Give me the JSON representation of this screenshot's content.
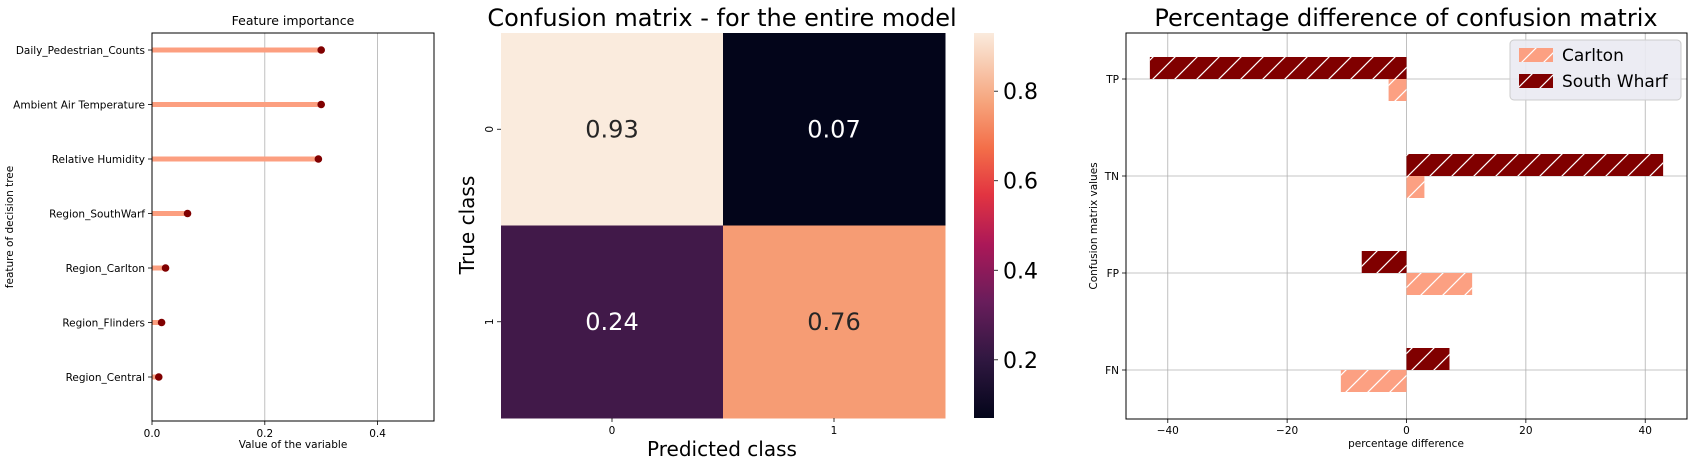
{
  "colors": {
    "salmon": "#fca082",
    "darkred": "#800000",
    "lollipop_line": "#fc9f80",
    "grid": "#b0b0b0"
  },
  "chart_data": [
    {
      "type": "bar",
      "orientation": "horizontal",
      "style": "lollipop",
      "title": "Feature importance",
      "xlabel": "Value of the variable",
      "ylabel": "feature of decision tree",
      "categories": [
        "Daily_Pedestrian_Counts",
        "Ambient Air Temperature",
        "Relative Humidity",
        "Region_SouthWarf",
        "Region_Carlton",
        "Region_Flinders",
        "Region_Central"
      ],
      "values": [
        0.3,
        0.3,
        0.295,
        0.063,
        0.024,
        0.017,
        0.012
      ],
      "xlim": [
        0,
        0.5
      ],
      "xticks": [
        0.0,
        0.2,
        0.4
      ],
      "xtick_labels": [
        "0.0",
        "0.2",
        "0.4"
      ],
      "grid": "vertical"
    },
    {
      "type": "heatmap",
      "title": "Confusion matrix - for the entire model",
      "xlabel": "Predicted class",
      "ylabel": "True class",
      "x_categories": [
        "0",
        "1"
      ],
      "y_categories": [
        "0",
        "1"
      ],
      "matrix": [
        [
          0.93,
          0.07
        ],
        [
          0.24,
          0.76
        ]
      ],
      "cell_labels": [
        [
          "0.93",
          "0.07"
        ],
        [
          "0.24",
          "0.76"
        ]
      ],
      "colormap": "rocket",
      "colorbar": {
        "vmin": 0.07,
        "vmax": 0.93,
        "ticks": [
          0.2,
          0.4,
          0.6,
          0.8
        ],
        "tick_labels": [
          "0.2",
          "0.4",
          "0.6",
          "0.8"
        ]
      }
    },
    {
      "type": "bar",
      "orientation": "horizontal",
      "title": "Percentage difference of confusion matrix",
      "xlabel": "percentage difference",
      "ylabel": "Confusion matrix values",
      "categories": [
        "TP",
        "TN",
        "FP",
        "FN"
      ],
      "series": [
        {
          "name": "Carlton",
          "values": [
            -3,
            3,
            11,
            -11
          ],
          "color": "#fca082",
          "hatch": "/"
        },
        {
          "name": "South Wharf",
          "values": [
            -43,
            43,
            -7.5,
            7.2
          ],
          "color": "#800000",
          "hatch": "/"
        }
      ],
      "xlim": [
        -47,
        47
      ],
      "xticks": [
        -40,
        -20,
        0,
        20,
        40
      ],
      "xtick_labels": [
        "−40",
        "−20",
        "0",
        "20",
        "40"
      ],
      "grid": "both",
      "legend": "top-right"
    }
  ]
}
